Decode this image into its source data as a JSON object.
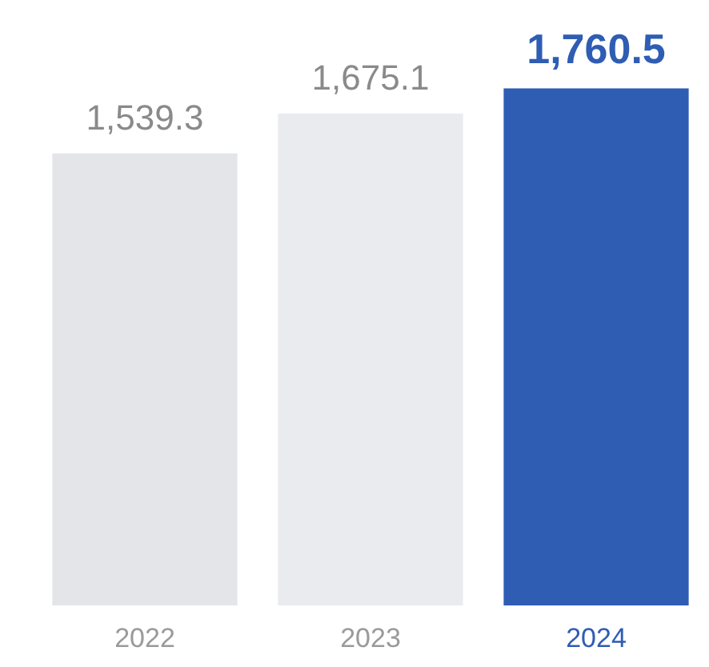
{
  "chart_data": {
    "type": "bar",
    "categories": [
      "2022",
      "2023",
      "2024"
    ],
    "values": [
      1539.3,
      1675.1,
      1760.5
    ],
    "colors": [
      "#e3e5e9",
      "#e9ebee",
      "#2f5db3"
    ],
    "value_labels": [
      "1,539.3",
      "1,675.1",
      "1,760.5"
    ],
    "tick_labels": "x",
    "grid": false,
    "legend": false
  }
}
